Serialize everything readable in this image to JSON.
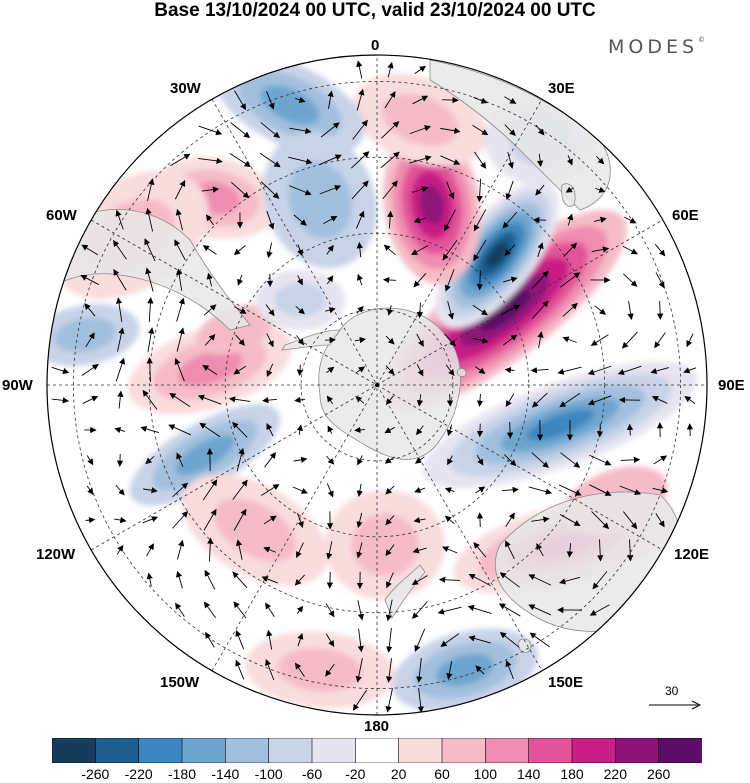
{
  "title": "Base 13/10/2024 00 UTC, valid 23/10/2024 00 UTC",
  "brand": {
    "name": "MODES",
    "mark": "©"
  },
  "longitude_labels": {
    "top": "0",
    "top_right": "30E",
    "upper_right": "60E",
    "right": "90E",
    "lower_right": "120E",
    "bottom_right": "150E",
    "bottom": "180",
    "bottom_left": "150W",
    "lower_left": "120W",
    "left": "90W",
    "upper_left": "60W",
    "top_left": "30W"
  },
  "reference_vector": {
    "label": "30"
  },
  "colorbar": {
    "ticks": [
      "-260",
      "-220",
      "-180",
      "-140",
      "-100",
      "-60",
      "-20",
      "20",
      "60",
      "100",
      "140",
      "180",
      "220",
      "260"
    ],
    "colors": [
      "#173c5b",
      "#1f5f8f",
      "#3e86bf",
      "#6ea5cf",
      "#a2c0de",
      "#c8d3e8",
      "#e6e4f0",
      "#ffffff",
      "#f9dcdc",
      "#f5bcc7",
      "#ef8db0",
      "#e25399",
      "#c81e85",
      "#8d1379",
      "#5a0e66"
    ]
  },
  "map": {
    "projection": "south polar stereographic",
    "colors": {
      "land": "#e8e8e8",
      "coast": "#8c8c8c",
      "grid": "#333333",
      "border": "#000000",
      "vector": "#000000"
    }
  }
}
